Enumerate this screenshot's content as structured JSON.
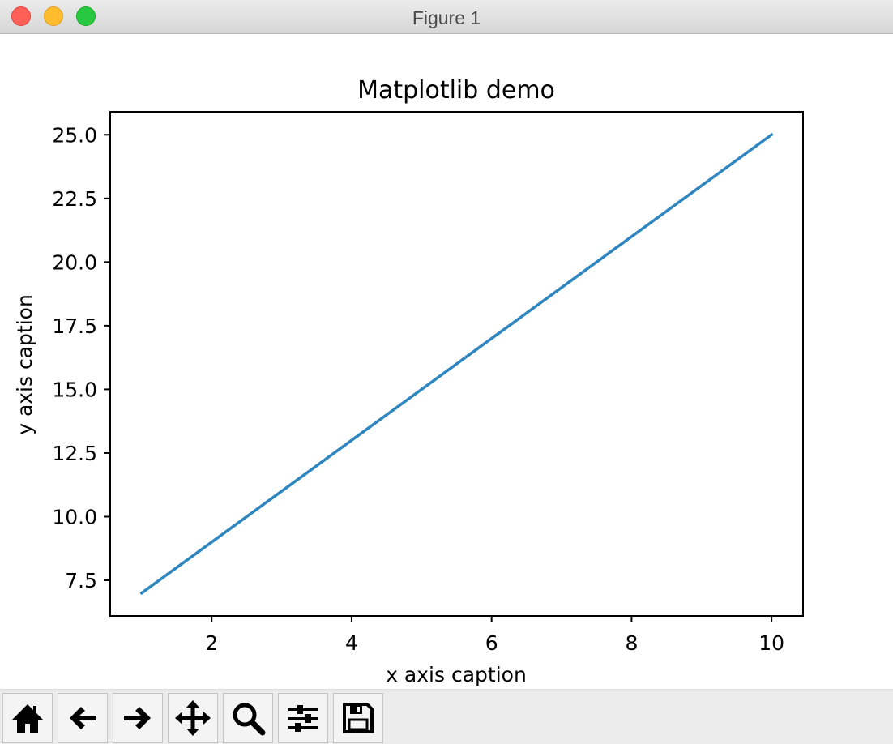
{
  "window": {
    "title": "Figure 1"
  },
  "toolbar": {
    "buttons": [
      {
        "name": "home-button",
        "icon": "home-icon"
      },
      {
        "name": "back-button",
        "icon": "arrow-left-icon"
      },
      {
        "name": "forward-button",
        "icon": "arrow-right-icon"
      },
      {
        "name": "pan-button",
        "icon": "move-icon"
      },
      {
        "name": "zoom-button",
        "icon": "magnifier-icon"
      },
      {
        "name": "configure-subplots-button",
        "icon": "sliders-icon"
      },
      {
        "name": "save-button",
        "icon": "floppy-disk-icon"
      }
    ]
  },
  "chart_data": {
    "type": "line",
    "title": "Matplotlib demo",
    "xlabel": "x axis caption",
    "ylabel": "y axis caption",
    "xlim": [
      0.55,
      10.45
    ],
    "ylim": [
      6.1,
      25.9
    ],
    "xticks": [
      2,
      4,
      6,
      8,
      10
    ],
    "xtick_labels": [
      "2",
      "4",
      "6",
      "8",
      "10"
    ],
    "yticks": [
      7.5,
      10.0,
      12.5,
      15.0,
      17.5,
      20.0,
      22.5,
      25.0
    ],
    "ytick_labels": [
      "7.5",
      "10.0",
      "12.5",
      "15.0",
      "17.5",
      "20.0",
      "22.5",
      "25.0"
    ],
    "grid": false,
    "series": [
      {
        "color": "#2e86c1",
        "x": [
          1,
          2,
          3,
          4,
          5,
          6,
          7,
          8,
          9,
          10
        ],
        "y": [
          7,
          9,
          11,
          13,
          15,
          17,
          19,
          21,
          23,
          25
        ]
      }
    ]
  }
}
